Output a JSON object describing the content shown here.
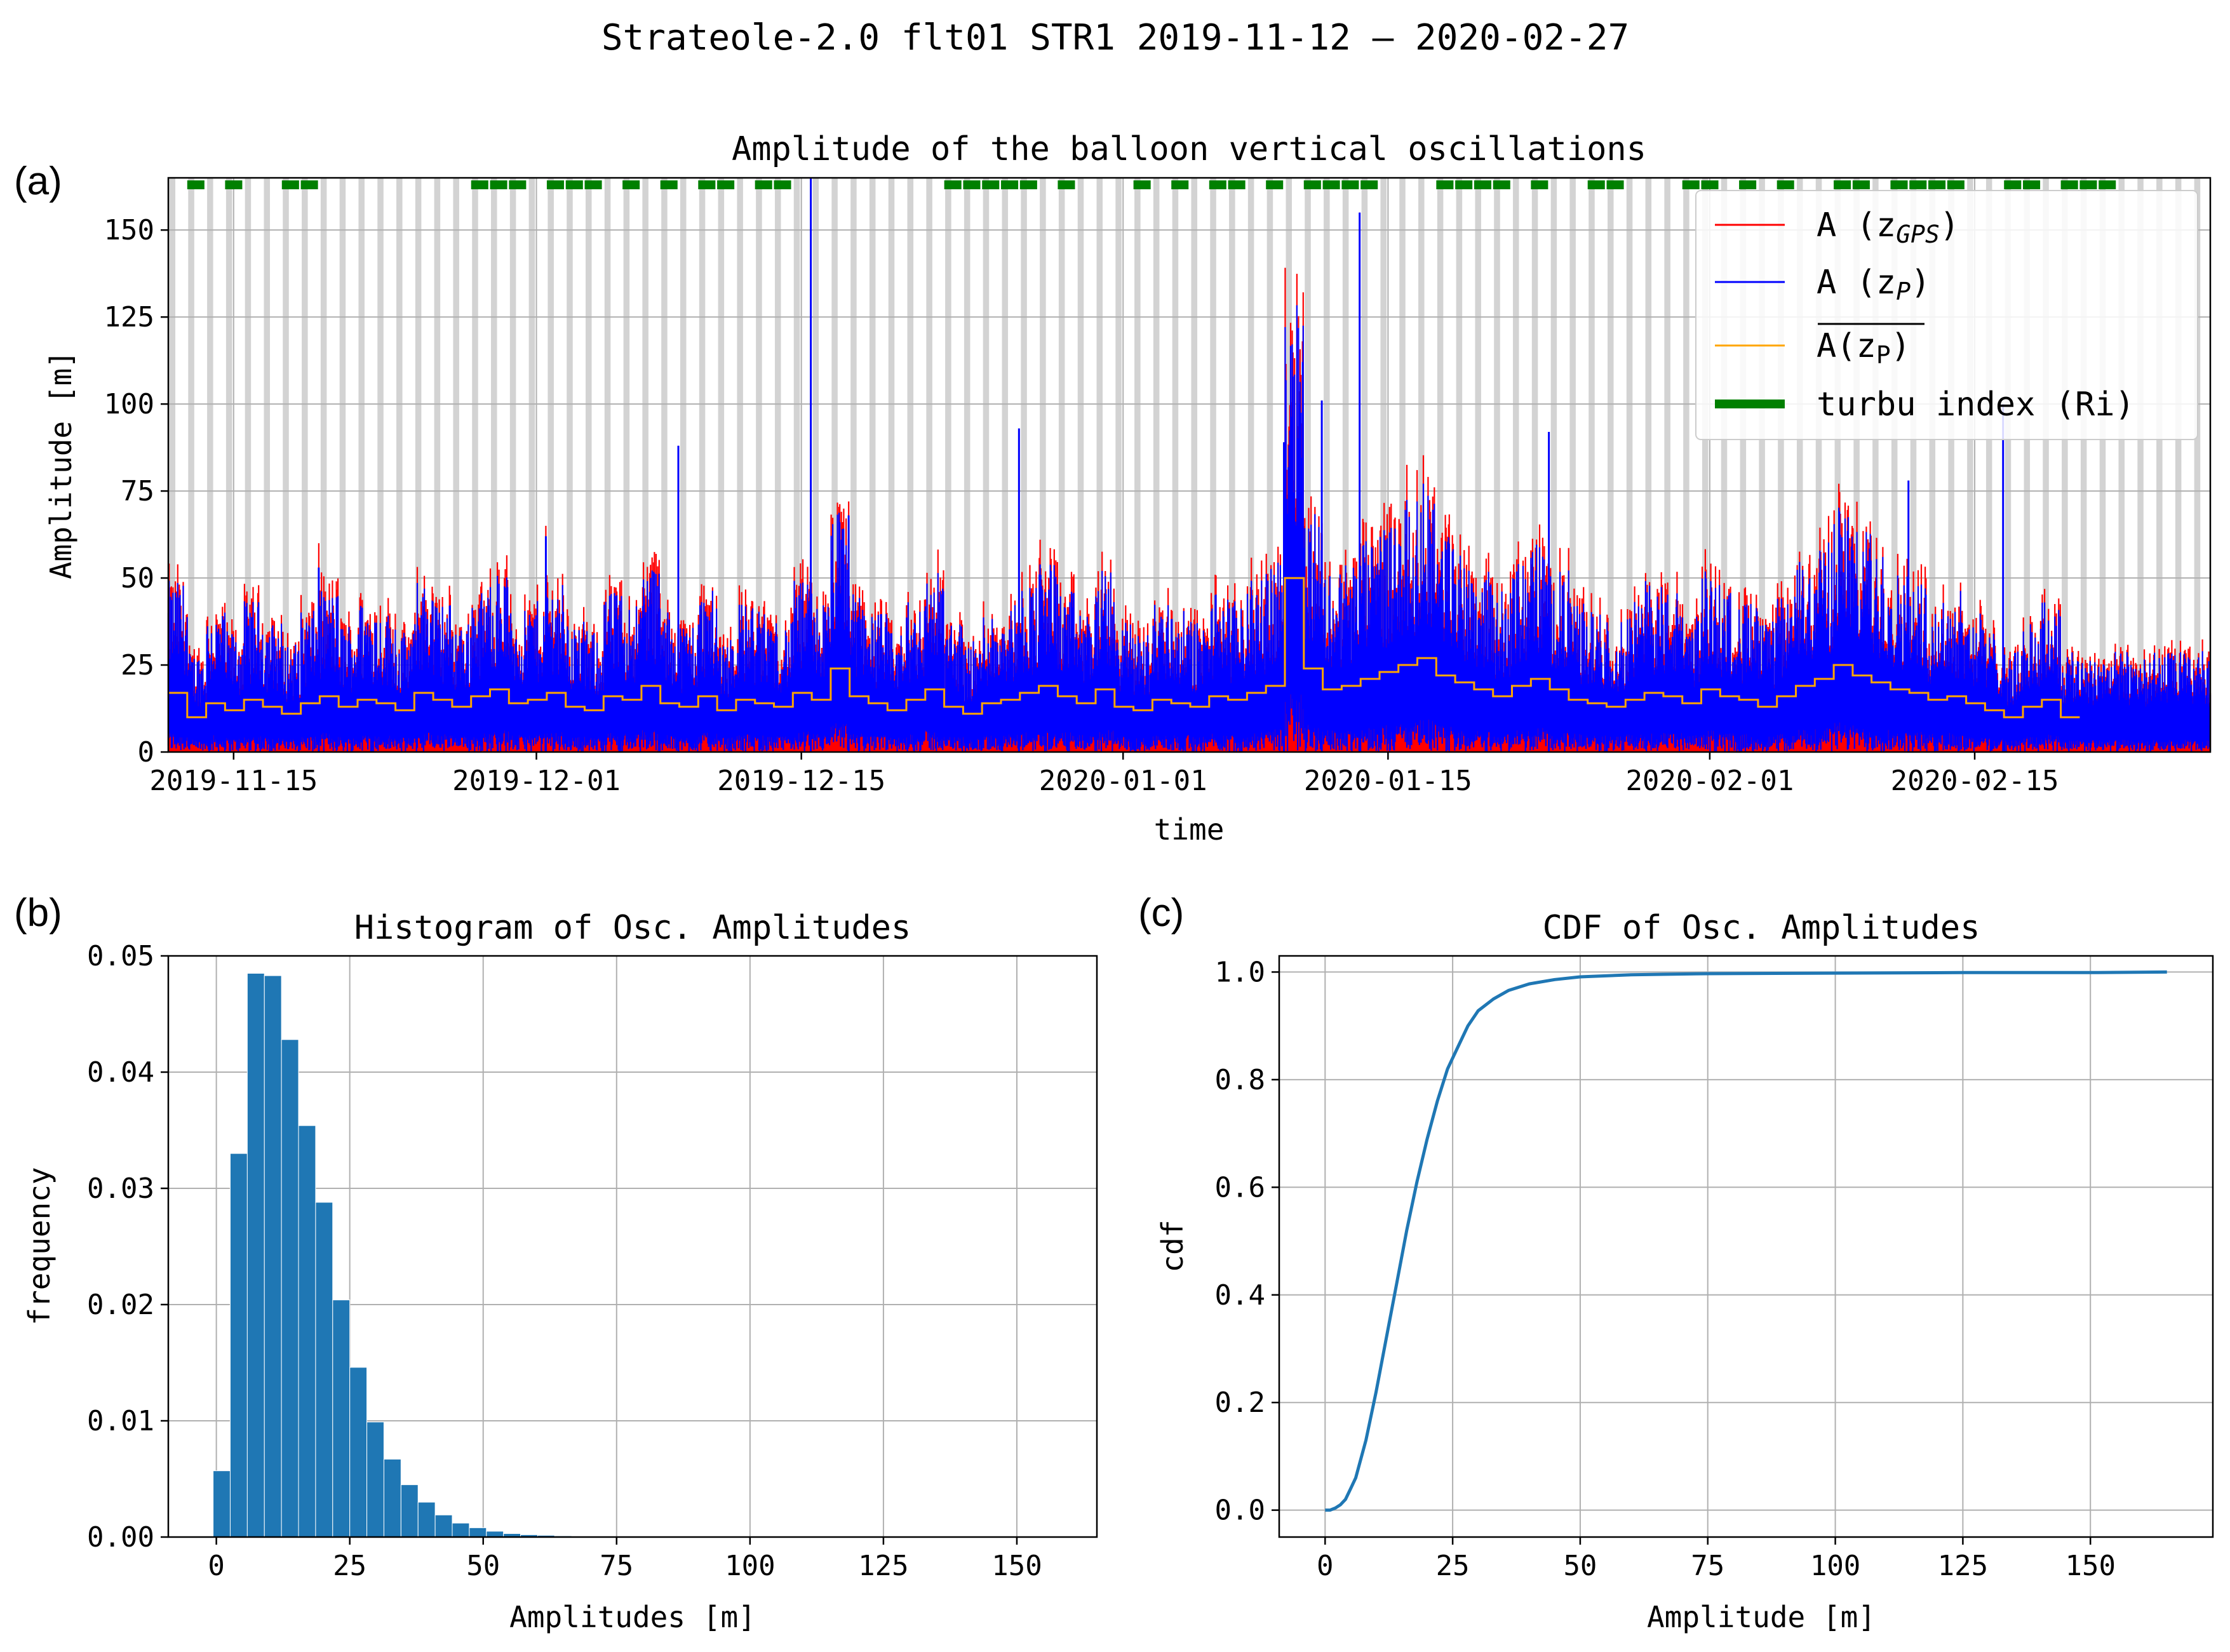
{
  "figure": {
    "suptitle": "Strateole-2.0 flt01 STR1  2019-11-12 – 2020-02-27",
    "colors": {
      "gps": "#ff0000",
      "zp": "#0000ff",
      "mean": "#ffa500",
      "turbu": "#008000",
      "hist": "#1f77b4",
      "cdf": "#1f77b4",
      "night": "#d3d3d3",
      "grid": "#b0b0b0"
    }
  },
  "chart_data": [
    {
      "panel": "(a)",
      "type": "line",
      "title": "Amplitude of the balloon vertical oscillations",
      "xlabel": "time",
      "ylabel": "Amplitude  [m]",
      "xlim": [
        "2019-11-15",
        "2020-02-27"
      ],
      "ylim": [
        0,
        165
      ],
      "yticks": [
        0,
        25,
        50,
        75,
        100,
        125,
        150
      ],
      "xticks": [
        "2019-11-15",
        "2019-12-01",
        "2019-12-15",
        "2020-01-01",
        "2020-01-15",
        "2020-02-01",
        "2020-02-15"
      ],
      "grid": true,
      "legend": {
        "position": "upper-right",
        "entries": [
          {
            "label": "A (z",
            "sub": "GPS",
            "suffix": ")",
            "color": "#ff0000",
            "style": "thin"
          },
          {
            "label": "A (z",
            "sub": "P",
            "suffix": ")",
            "color": "#0000ff",
            "style": "thin"
          },
          {
            "label": "A(z",
            "sub": "P",
            "suffix": ")",
            "overline": true,
            "color": "#ffa500",
            "style": "thin"
          },
          {
            "label": "turbu index (Ri)",
            "color": "#008000",
            "style": "thick"
          }
        ]
      },
      "night_shading": "daily",
      "spikes": [
        {
          "date": "2019-11-19",
          "zp": 53,
          "gps": 60
        },
        {
          "date": "2019-12-01",
          "zp": 62,
          "gps": 65
        },
        {
          "date": "2019-12-08",
          "zp": 88,
          "gps": 88
        },
        {
          "date": "2019-12-15",
          "zp": 165,
          "gps": 140
        },
        {
          "date": "2019-12-17",
          "zp": 68,
          "gps": 72
        },
        {
          "date": "2019-12-26",
          "zp": 93,
          "gps": 93
        },
        {
          "date": "2020-01-09",
          "zp": 89,
          "gps": 89
        },
        {
          "date": "2020-01-11",
          "zp": 101,
          "gps": 101
        },
        {
          "date": "2020-01-13",
          "zp": 155,
          "gps": 155
        },
        {
          "date": "2020-01-23",
          "zp": 92,
          "gps": 92
        },
        {
          "date": "2020-02-11",
          "zp": 78,
          "gps": 78
        },
        {
          "date": "2020-02-16",
          "zp": 100,
          "gps": 100
        }
      ],
      "daily_mean_zp": [
        17,
        10,
        14,
        12,
        15,
        13,
        11,
        14,
        16,
        13,
        15,
        14,
        12,
        17,
        15,
        13,
        16,
        18,
        14,
        15,
        17,
        13,
        12,
        16,
        15,
        19,
        14,
        13,
        16,
        12,
        15,
        14,
        13,
        17,
        15,
        24,
        16,
        14,
        12,
        15,
        18,
        13,
        11,
        14,
        15,
        17,
        19,
        16,
        14,
        18,
        13,
        12,
        15,
        14,
        13,
        16,
        15,
        17,
        19,
        50,
        24,
        18,
        19,
        21,
        23,
        25,
        27,
        22,
        20,
        18,
        16,
        19,
        21,
        18,
        15,
        14,
        13,
        15,
        17,
        16,
        14,
        18,
        16,
        15,
        13,
        16,
        19,
        21,
        25,
        22,
        20,
        18,
        17,
        15,
        16,
        14,
        12,
        10,
        13,
        15,
        10
      ],
      "turbu_index_days": [
        1,
        3,
        6,
        7,
        16,
        17,
        18,
        20,
        21,
        22,
        24,
        26,
        28,
        29,
        31,
        32,
        41,
        42,
        43,
        44,
        45,
        47,
        51,
        53,
        55,
        56,
        58,
        60,
        61,
        62,
        63,
        67,
        68,
        69,
        70,
        72,
        75,
        76,
        80,
        81,
        83,
        85,
        88,
        89,
        91,
        92,
        93,
        94,
        97,
        98,
        100,
        101,
        102
      ]
    },
    {
      "panel": "(b)",
      "type": "bar",
      "title": "Histogram of Osc. Amplitudes",
      "xlabel": "Amplitudes  [m]",
      "ylabel": "frequency",
      "xlim": [
        -9,
        165
      ],
      "ylim": [
        0,
        0.05
      ],
      "xticks": [
        0,
        25,
        50,
        75,
        100,
        125,
        150
      ],
      "yticks": [
        "0.00",
        "0.01",
        "0.02",
        "0.03",
        "0.04",
        "0.05"
      ],
      "grid": true,
      "bin_width": 3.2,
      "bin_start": -0.6,
      "values": [
        0.0057,
        0.033,
        0.0485,
        0.0483,
        0.0428,
        0.0354,
        0.0288,
        0.0204,
        0.0146,
        0.0099,
        0.0067,
        0.0045,
        0.003,
        0.0019,
        0.0012,
        0.0008,
        0.0005,
        0.0003,
        0.0002,
        0.00015,
        0.0001,
        7e-05,
        5e-05,
        3e-05,
        2e-05
      ]
    },
    {
      "panel": "(c)",
      "type": "line",
      "title": "CDF of Osc. Amplitudes",
      "xlabel": "Amplitude  [m]",
      "ylabel": "cdf",
      "xlim": [
        -9,
        174
      ],
      "ylim": [
        -0.05,
        1.03
      ],
      "xticks": [
        0,
        25,
        50,
        75,
        100,
        125,
        150
      ],
      "yticks": [
        "0.0",
        "0.2",
        "0.4",
        "0.6",
        "0.8",
        "1.0"
      ],
      "grid": true,
      "x": [
        0,
        1,
        2,
        3,
        4,
        5,
        6,
        8,
        10,
        12,
        14,
        16,
        18,
        20,
        22,
        24,
        26,
        28,
        30,
        33,
        36,
        40,
        45,
        50,
        60,
        75,
        100,
        125,
        150,
        165
      ],
      "y": [
        0.0,
        0.0,
        0.004,
        0.01,
        0.02,
        0.04,
        0.06,
        0.13,
        0.22,
        0.32,
        0.42,
        0.52,
        0.61,
        0.69,
        0.76,
        0.82,
        0.86,
        0.9,
        0.928,
        0.95,
        0.966,
        0.978,
        0.986,
        0.991,
        0.995,
        0.997,
        0.998,
        0.999,
        0.999,
        1.0
      ]
    }
  ]
}
